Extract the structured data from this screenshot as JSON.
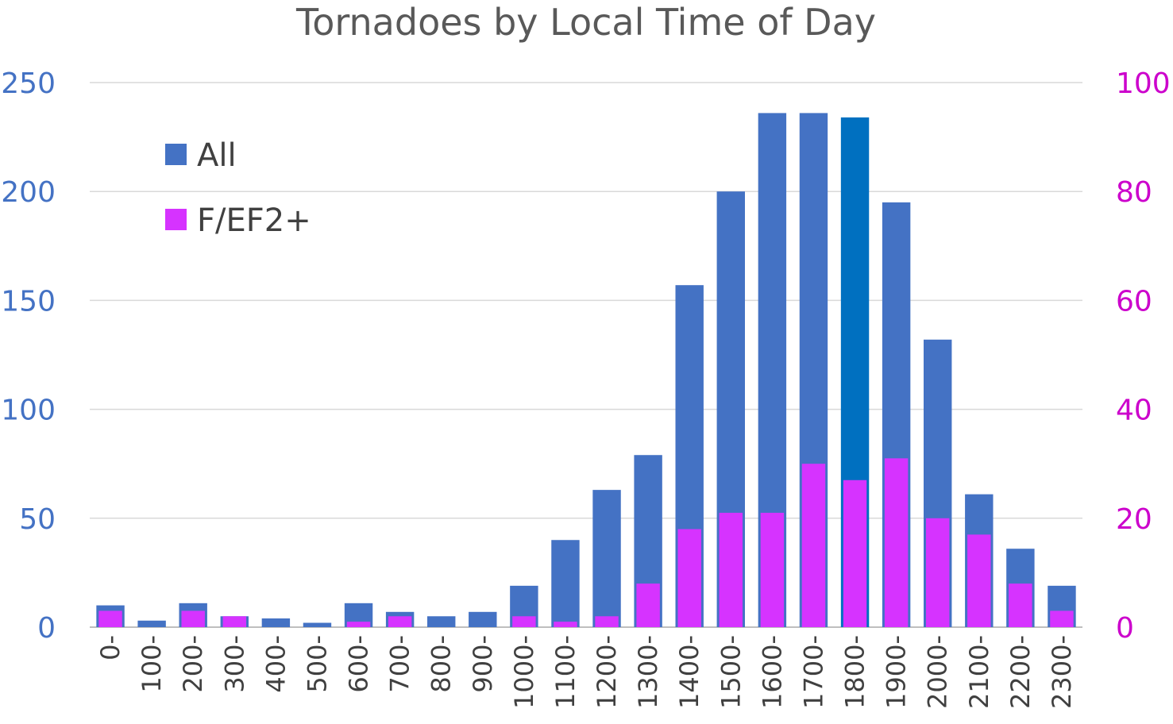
{
  "chart_data": {
    "type": "bar",
    "title": "Tornadoes by Local Time of Day",
    "xlabel": "",
    "ylabel": "",
    "categories": [
      "0-",
      "100-",
      "200-",
      "300-",
      "400-",
      "500-",
      "600-",
      "700-",
      "800-",
      "900-",
      "1000-",
      "1100-",
      "1200-",
      "1300-",
      "1400-",
      "1500-",
      "1600-",
      "1700-",
      "1800-",
      "1900-",
      "2000-",
      "2100-",
      "2200-",
      "2300-"
    ],
    "series": [
      {
        "name": "All",
        "axis": "left",
        "color": "#4472c4",
        "highlight_color": "#0070c0",
        "highlight_index": 18,
        "values": [
          10,
          3,
          11,
          5,
          4,
          2,
          11,
          7,
          5,
          7,
          19,
          40,
          63,
          79,
          157,
          200,
          236,
          236,
          234,
          195,
          132,
          61,
          36,
          19
        ]
      },
      {
        "name": "F/EF2+",
        "axis": "right",
        "color": "#d633ff",
        "values": [
          3,
          0,
          3,
          2,
          0,
          0,
          1,
          2,
          0,
          0,
          2,
          1,
          2,
          8,
          18,
          21,
          21,
          30,
          27,
          31,
          20,
          17,
          8,
          3
        ]
      }
    ],
    "ylim_left": [
      0,
      250
    ],
    "yticks_left": [
      "0",
      "50",
      "100",
      "150",
      "200",
      "250"
    ],
    "ylim_right": [
      0,
      100
    ],
    "yticks_right": [
      "0",
      "20",
      "40",
      "60",
      "80",
      "100"
    ],
    "grid": true,
    "legend_position": "top-left"
  }
}
